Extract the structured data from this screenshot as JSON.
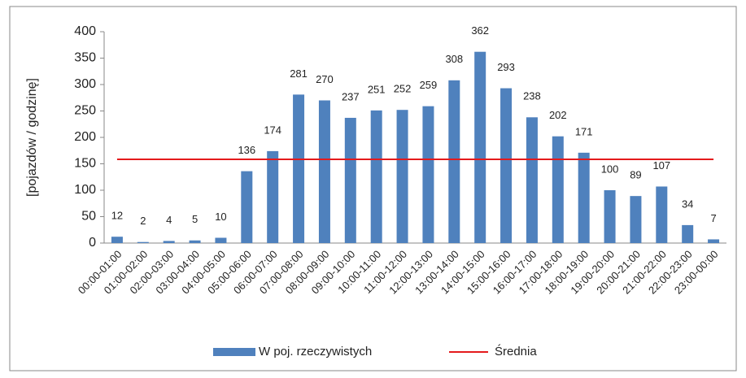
{
  "chart_data": {
    "type": "bar",
    "ylabel": "[pojazdów / godzinę]",
    "categories": [
      "00:00-01:00",
      "01:00-02:00",
      "02:00-03:00",
      "03:00-04:00",
      "04:00-05:00",
      "05:00-06:00",
      "06:00-07:00",
      "07:00-08:00",
      "08:00-09:00",
      "09:00-10:00",
      "10:00-11:00",
      "11:00-12:00",
      "12:00-13:00",
      "13:00-14:00",
      "14:00-15:00",
      "15:00-16:00",
      "16:00-17:00",
      "17:00-18:00",
      "18:00-19:00",
      "19:00-20:00",
      "20:00-21:00",
      "21:00-22:00",
      "22:00-23:00",
      "23:00-00:00"
    ],
    "series": [
      {
        "name": "W poj. rzeczywistych",
        "type": "bar",
        "color": "#4f81bd",
        "values": [
          12,
          2,
          4,
          5,
          10,
          136,
          174,
          281,
          270,
          237,
          251,
          252,
          259,
          308,
          362,
          293,
          238,
          202,
          171,
          100,
          89,
          107,
          34,
          7
        ]
      },
      {
        "name": "Średnia",
        "type": "line",
        "color": "#e41a1c",
        "values": [
          158.5,
          158.5,
          158.5,
          158.5,
          158.5,
          158.5,
          158.5,
          158.5,
          158.5,
          158.5,
          158.5,
          158.5,
          158.5,
          158.5,
          158.5,
          158.5,
          158.5,
          158.5,
          158.5,
          158.5,
          158.5,
          158.5,
          158.5,
          158.5
        ]
      }
    ],
    "ylim": [
      0,
      400
    ],
    "yticks": [
      0,
      50,
      100,
      150,
      200,
      250,
      300,
      350,
      400
    ],
    "legend": "bottom"
  }
}
